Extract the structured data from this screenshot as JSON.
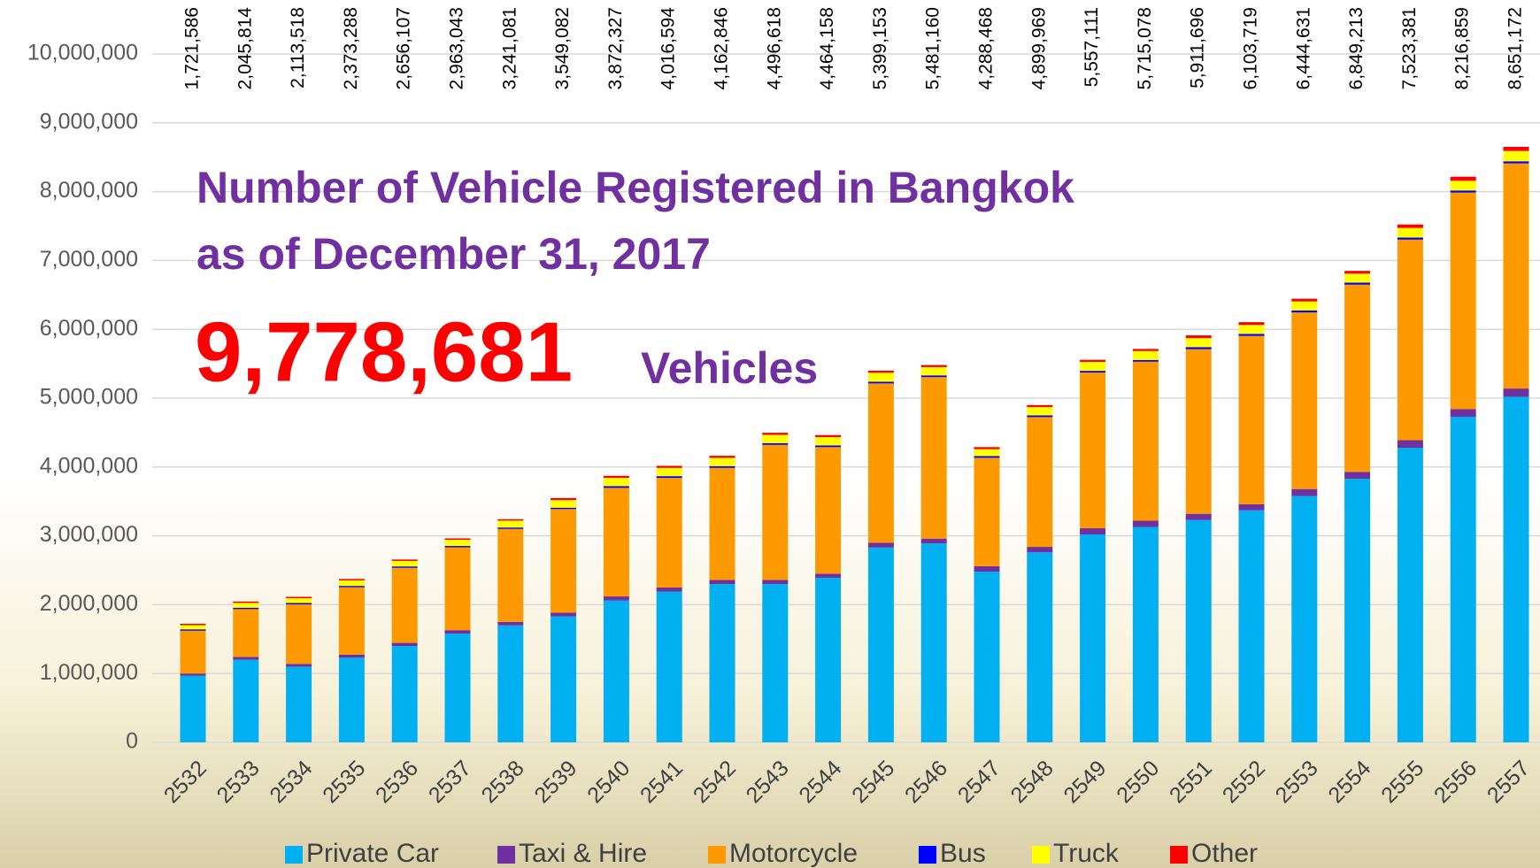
{
  "chart_data": {
    "type": "stacked-bar",
    "title": "Number of Vehicle Registered in Bangkok",
    "subtitle": "as of December 31, 2017",
    "headline": "9,778,681",
    "headline_unit": "Vehicles",
    "categories": [
      "2532",
      "2533",
      "2534",
      "2535",
      "2536",
      "2537",
      "2538",
      "2539",
      "2540",
      "2541",
      "2542",
      "2543",
      "2544",
      "2545",
      "2546",
      "2547",
      "2548",
      "2549",
      "2550",
      "2551",
      "2552",
      "2553",
      "2554",
      "2555",
      "2556",
      "2557"
    ],
    "series": [
      {
        "name": "Private Car",
        "color": "#00b0f0",
        "values": [
          970000,
          1200000,
          1100000,
          1230000,
          1400000,
          1580000,
          1700000,
          1830000,
          2060000,
          2190000,
          2300000,
          2300000,
          2390000,
          2830000,
          2890000,
          2480000,
          2760000,
          3020000,
          3130000,
          3230000,
          3370000,
          3580000,
          3830000,
          4280000,
          4730000,
          5020000
        ]
      },
      {
        "name": "Taxi & Hire",
        "color": "#7030a0",
        "values": [
          30000,
          40000,
          40000,
          45000,
          45000,
          50000,
          50000,
          55000,
          60000,
          60000,
          60000,
          60000,
          60000,
          70000,
          70000,
          80000,
          80000,
          90000,
          90000,
          90000,
          90000,
          100000,
          100000,
          110000,
          110000,
          120000
        ]
      },
      {
        "name": "Motorcycle",
        "color": "#ff9900",
        "values": [
          622000,
          696000,
          864000,
          978000,
          1091000,
          1203000,
          1351000,
          1504000,
          1577000,
          1592000,
          1628000,
          1962000,
          1839000,
          2314000,
          2346000,
          1574000,
          1885000,
          2262000,
          2310000,
          2392000,
          2444000,
          2565000,
          2719000,
          2913000,
          3147000,
          3271000
        ]
      },
      {
        "name": "Bus",
        "color": "#0000ff",
        "values": [
          20000,
          20000,
          20000,
          20000,
          20000,
          20000,
          20000,
          20000,
          25000,
          25000,
          25000,
          25000,
          25000,
          25000,
          25000,
          25000,
          25000,
          25000,
          25000,
          30000,
          30000,
          30000,
          30000,
          30000,
          30000,
          30000
        ]
      },
      {
        "name": "Truck",
        "color": "#ffff00",
        "values": [
          60000,
          70000,
          70000,
          80000,
          80000,
          90000,
          100000,
          110000,
          120000,
          120000,
          120000,
          120000,
          120000,
          130000,
          120000,
          100000,
          120000,
          130000,
          130000,
          130000,
          130000,
          130000,
          130000,
          140000,
          140000,
          150000
        ]
      },
      {
        "name": "Other",
        "color": "#ff0000",
        "values": [
          20000,
          20000,
          20000,
          20000,
          20000,
          20000,
          20000,
          30000,
          30000,
          30000,
          30000,
          30000,
          30000,
          30000,
          30000,
          30000,
          30000,
          30000,
          30000,
          40000,
          40000,
          40000,
          40000,
          50000,
          60000,
          60000
        ]
      }
    ],
    "totals": [
      {
        "value": 1721586,
        "label": "1,721,586"
      },
      {
        "value": 2045814,
        "label": "2,045,814"
      },
      {
        "value": 2113518,
        "label": "2,113,518"
      },
      {
        "value": 2373288,
        "label": "2,373,288"
      },
      {
        "value": 2656107,
        "label": "2,656,107"
      },
      {
        "value": 2963043,
        "label": "2,963,043"
      },
      {
        "value": 3241081,
        "label": "3,241,081"
      },
      {
        "value": 3549082,
        "label": "3,549,082"
      },
      {
        "value": 3872327,
        "label": "3,872,327"
      },
      {
        "value": 4016594,
        "label": "4,016,594"
      },
      {
        "value": 4162846,
        "label": "4,162,846"
      },
      {
        "value": 4496618,
        "label": "4,496,618"
      },
      {
        "value": 4464158,
        "label": "4,464,158"
      },
      {
        "value": 5399153,
        "label": "5,399,153"
      },
      {
        "value": 5481160,
        "label": "5,481,160"
      },
      {
        "value": 4288468,
        "label": "4,288,468"
      },
      {
        "value": 4899969,
        "label": "4,899,969"
      },
      {
        "value": 5557111,
        "label": "5,557,111"
      },
      {
        "value": 5715078,
        "label": "5,715,078"
      },
      {
        "value": 5911696,
        "label": "5,911,696"
      },
      {
        "value": 6103719,
        "label": "6,103,719"
      },
      {
        "value": 6444631,
        "label": "6,444,631"
      },
      {
        "value": 6849213,
        "label": "6,849,213"
      },
      {
        "value": 7523381,
        "label": "7,523,381"
      },
      {
        "value": 8216859,
        "label": "8,216,859"
      },
      {
        "value": 8651172,
        "label": "8,651,172"
      }
    ],
    "ylim": [
      0,
      10000000
    ],
    "yticks": [
      0,
      {
        "value": 1000000,
        "label": "1,000,000"
      },
      {
        "value": 2000000,
        "label": "2,000,000"
      },
      {
        "value": 3000000,
        "label": "3,000,000"
      },
      {
        "value": 4000000,
        "label": "4,000,000"
      },
      {
        "value": 5000000,
        "label": "5,000,000"
      },
      {
        "value": 6000000,
        "label": "6,000,000"
      },
      {
        "value": 7000000,
        "label": "7,000,000"
      },
      {
        "value": 8000000,
        "label": "8,000,000"
      },
      {
        "value": 9000000,
        "label": "9,000,000"
      },
      {
        "value": 10000000,
        "label": "10,000,000"
      }
    ],
    "grid": true
  }
}
